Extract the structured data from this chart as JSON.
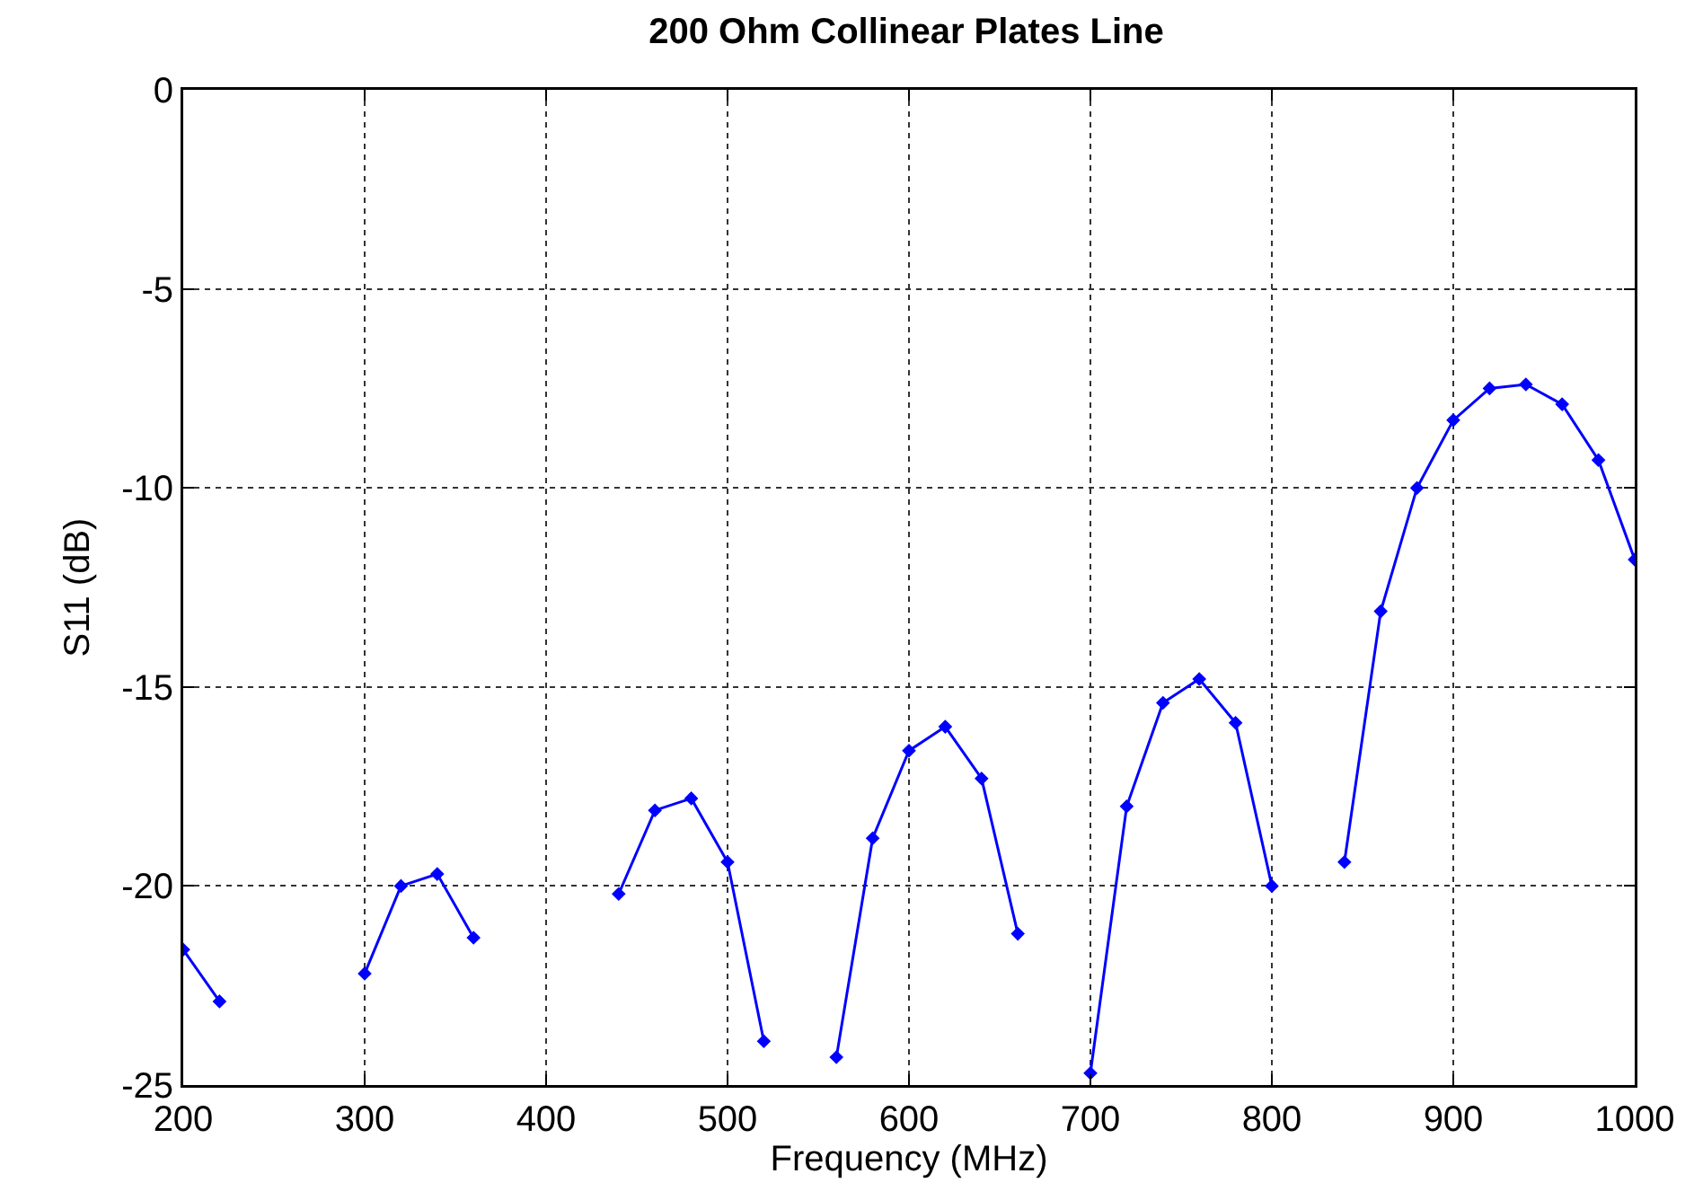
{
  "chart_data": {
    "type": "line",
    "title": "200 Ohm Collinear Plates Line",
    "xlabel": "Frequency (MHz)",
    "ylabel": "S11 (dB)",
    "x": [
      200,
      220,
      240,
      260,
      280,
      300,
      320,
      340,
      360,
      380,
      400,
      420,
      440,
      460,
      480,
      500,
      520,
      540,
      560,
      580,
      600,
      620,
      640,
      660,
      680,
      700,
      720,
      740,
      760,
      780,
      800,
      820,
      840,
      860,
      880,
      900,
      920,
      940,
      960,
      980,
      1000
    ],
    "series": [
      {
        "color": "#0000ff",
        "values": [
          -21.6,
          -22.9,
          null,
          null,
          null,
          -22.2,
          -20.0,
          -19.7,
          -21.3,
          null,
          null,
          null,
          -20.2,
          -18.1,
          -17.8,
          -19.4,
          -23.9,
          null,
          -24.3,
          -18.8,
          -16.6,
          -16.0,
          -17.3,
          -21.2,
          null,
          -24.7,
          -18.0,
          -15.4,
          -14.8,
          -15.9,
          -20.0,
          null,
          -19.4,
          -13.1,
          -10.0,
          -8.3,
          -7.5,
          -7.4,
          -7.9,
          -9.3,
          -11.8
        ]
      }
    ],
    "xlim": [
      200,
      1000
    ],
    "xticks": [
      200,
      300,
      400,
      500,
      600,
      700,
      800,
      900,
      1000
    ],
    "ylim": [
      -25,
      0
    ],
    "yticks": [
      -25,
      -20,
      -15,
      -10,
      -5,
      0
    ],
    "grid": true,
    "marker": "diamond",
    "line_style": "solid"
  }
}
